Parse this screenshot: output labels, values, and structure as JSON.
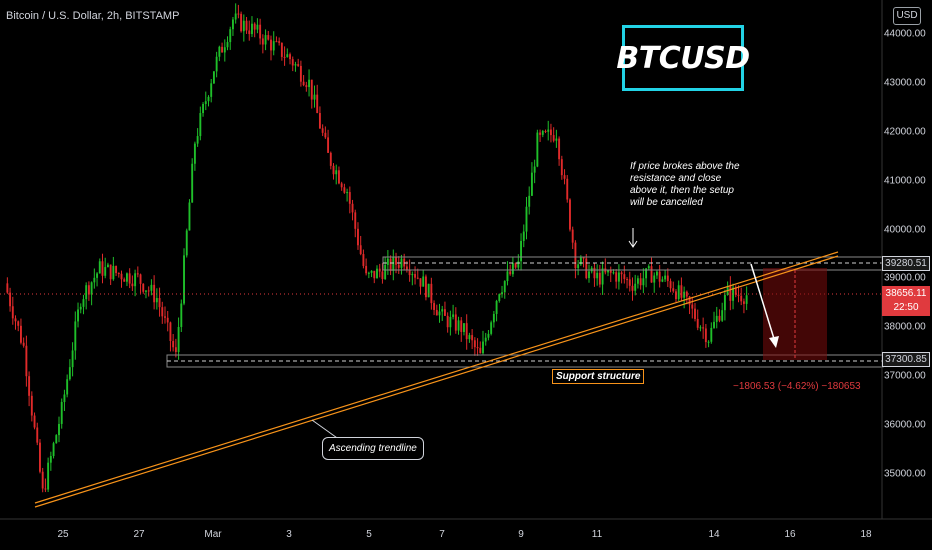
{
  "header": {
    "symbol_title": "Bitcoin / U.S. Dollar, 2h, BITSTAMP",
    "logo_text": "BTCUSD",
    "currency": "USD"
  },
  "price_axis": {
    "ticks": [
      "44000.00",
      "43000.00",
      "42000.00",
      "41000.00",
      "40000.00",
      "39000.00",
      "38000.00",
      "37000.00",
      "36000.00",
      "35000.00"
    ],
    "resistance_label": "39280.51",
    "current_price": "38656.11",
    "countdown": "22:50",
    "support_label": "37300.85"
  },
  "time_axis": {
    "ticks": [
      "25",
      "27",
      "Mar",
      "3",
      "5",
      "7",
      "9",
      "11",
      "14",
      "16",
      "18"
    ]
  },
  "annotations": {
    "note_lines": [
      "If price brokes above the",
      "resistance and close",
      "above it, then the setup",
      "will be cancelled"
    ],
    "support_structure": "Support structure",
    "ascending_trendline": "Ascending trendline",
    "measure": "−1806.53 (−4.62%) −180653"
  },
  "colors": {
    "background": "#000000",
    "bull_candle": "#1fbf2a",
    "bear_candle": "#e02a2a",
    "trendline": "#f7931a",
    "logo_border": "#22d3e6",
    "current_price": "#e03a3e"
  },
  "chart_data": {
    "type": "candlestick",
    "symbol": "BTCUSD",
    "interval": "2h",
    "ylim": [
      34400,
      44600
    ],
    "resistance": 39280.51,
    "support": 37300.85,
    "current": 38656.11,
    "close_path": [
      {
        "x": "Feb 23 12:00",
        "y": 38900
      },
      {
        "x": "Feb 24 00:00",
        "y": 37600
      },
      {
        "x": "Feb 24 12:00",
        "y": 34600
      },
      {
        "x": "Feb 25 00:00",
        "y": 36300
      },
      {
        "x": "Feb 25 12:00",
        "y": 38600
      },
      {
        "x": "Feb 26 00:00",
        "y": 39200
      },
      {
        "x": "Feb 26 12:00",
        "y": 39100
      },
      {
        "x": "Feb 27 00:00",
        "y": 39000
      },
      {
        "x": "Feb 27 12:00",
        "y": 38600
      },
      {
        "x": "Feb 28 00:00",
        "y": 37400
      },
      {
        "x": "Feb 28 12:00",
        "y": 41800
      },
      {
        "x": "Mar 1 00:00",
        "y": 43300
      },
      {
        "x": "Mar 1 12:00",
        "y": 44300
      },
      {
        "x": "Mar 2 00:00",
        "y": 44100
      },
      {
        "x": "Mar 2 12:00",
        "y": 43800
      },
      {
        "x": "Mar 3 00:00",
        "y": 43500
      },
      {
        "x": "Mar 3 12:00",
        "y": 43000
      },
      {
        "x": "Mar 4 00:00",
        "y": 41500
      },
      {
        "x": "Mar 4 12:00",
        "y": 40800
      },
      {
        "x": "Mar 5 00:00",
        "y": 39000
      },
      {
        "x": "Mar 5 12:00",
        "y": 39200
      },
      {
        "x": "Mar 6 00:00",
        "y": 39400
      },
      {
        "x": "Mar 6 12:00",
        "y": 38900
      },
      {
        "x": "Mar 7 00:00",
        "y": 38200
      },
      {
        "x": "Mar 7 12:00",
        "y": 38000
      },
      {
        "x": "Mar 8 00:00",
        "y": 37400
      },
      {
        "x": "Mar 8 12:00",
        "y": 38800
      },
      {
        "x": "Mar 9 00:00",
        "y": 39300
      },
      {
        "x": "Mar 9 12:00",
        "y": 41800
      },
      {
        "x": "Mar 10 00:00",
        "y": 42000
      },
      {
        "x": "Mar 10 12:00",
        "y": 39400
      },
      {
        "x": "Mar 11 00:00",
        "y": 39000
      },
      {
        "x": "Mar 11 12:00",
        "y": 39100
      },
      {
        "x": "Mar 12 00:00",
        "y": 38900
      },
      {
        "x": "Mar 12 12:00",
        "y": 39100
      },
      {
        "x": "Mar 13 00:00",
        "y": 38900
      },
      {
        "x": "Mar 13 12:00",
        "y": 38400
      },
      {
        "x": "Mar 14 00:00",
        "y": 37800
      },
      {
        "x": "Mar 14 12:00",
        "y": 38700
      },
      {
        "x": "Mar 14 18:00",
        "y": 38656
      }
    ]
  }
}
